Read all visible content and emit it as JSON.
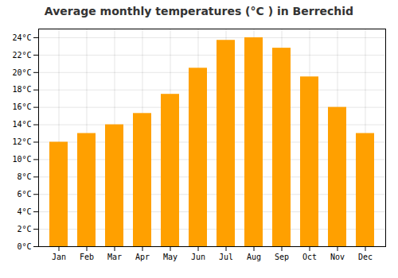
{
  "chart_data": {
    "type": "bar",
    "title": "Average monthly temperatures (°C ) in Berrechid",
    "categories": [
      "Jan",
      "Feb",
      "Mar",
      "Apr",
      "May",
      "Jun",
      "Jul",
      "Aug",
      "Sep",
      "Oct",
      "Nov",
      "Dec"
    ],
    "values": [
      12,
      13,
      14,
      15.3,
      17.5,
      20.5,
      23.7,
      24,
      22.8,
      19.5,
      16,
      13
    ],
    "color": "#FFA000",
    "ylim": [
      0,
      25
    ],
    "yticks": [
      {
        "value": 0,
        "label": "0°C"
      },
      {
        "value": 2,
        "label": "2°C"
      },
      {
        "value": 4,
        "label": "4°C"
      },
      {
        "value": 6,
        "label": "6°C"
      },
      {
        "value": 8,
        "label": "8°C"
      },
      {
        "value": 10,
        "label": "10°C"
      },
      {
        "value": 12,
        "label": "12°C"
      },
      {
        "value": 14,
        "label": "14°C"
      },
      {
        "value": 16,
        "label": "16°C"
      },
      {
        "value": 18,
        "label": "18°C"
      },
      {
        "value": 20,
        "label": "20°C"
      },
      {
        "value": 22,
        "label": "22°C"
      },
      {
        "value": 24,
        "label": "24°C"
      }
    ],
    "grid": true
  }
}
